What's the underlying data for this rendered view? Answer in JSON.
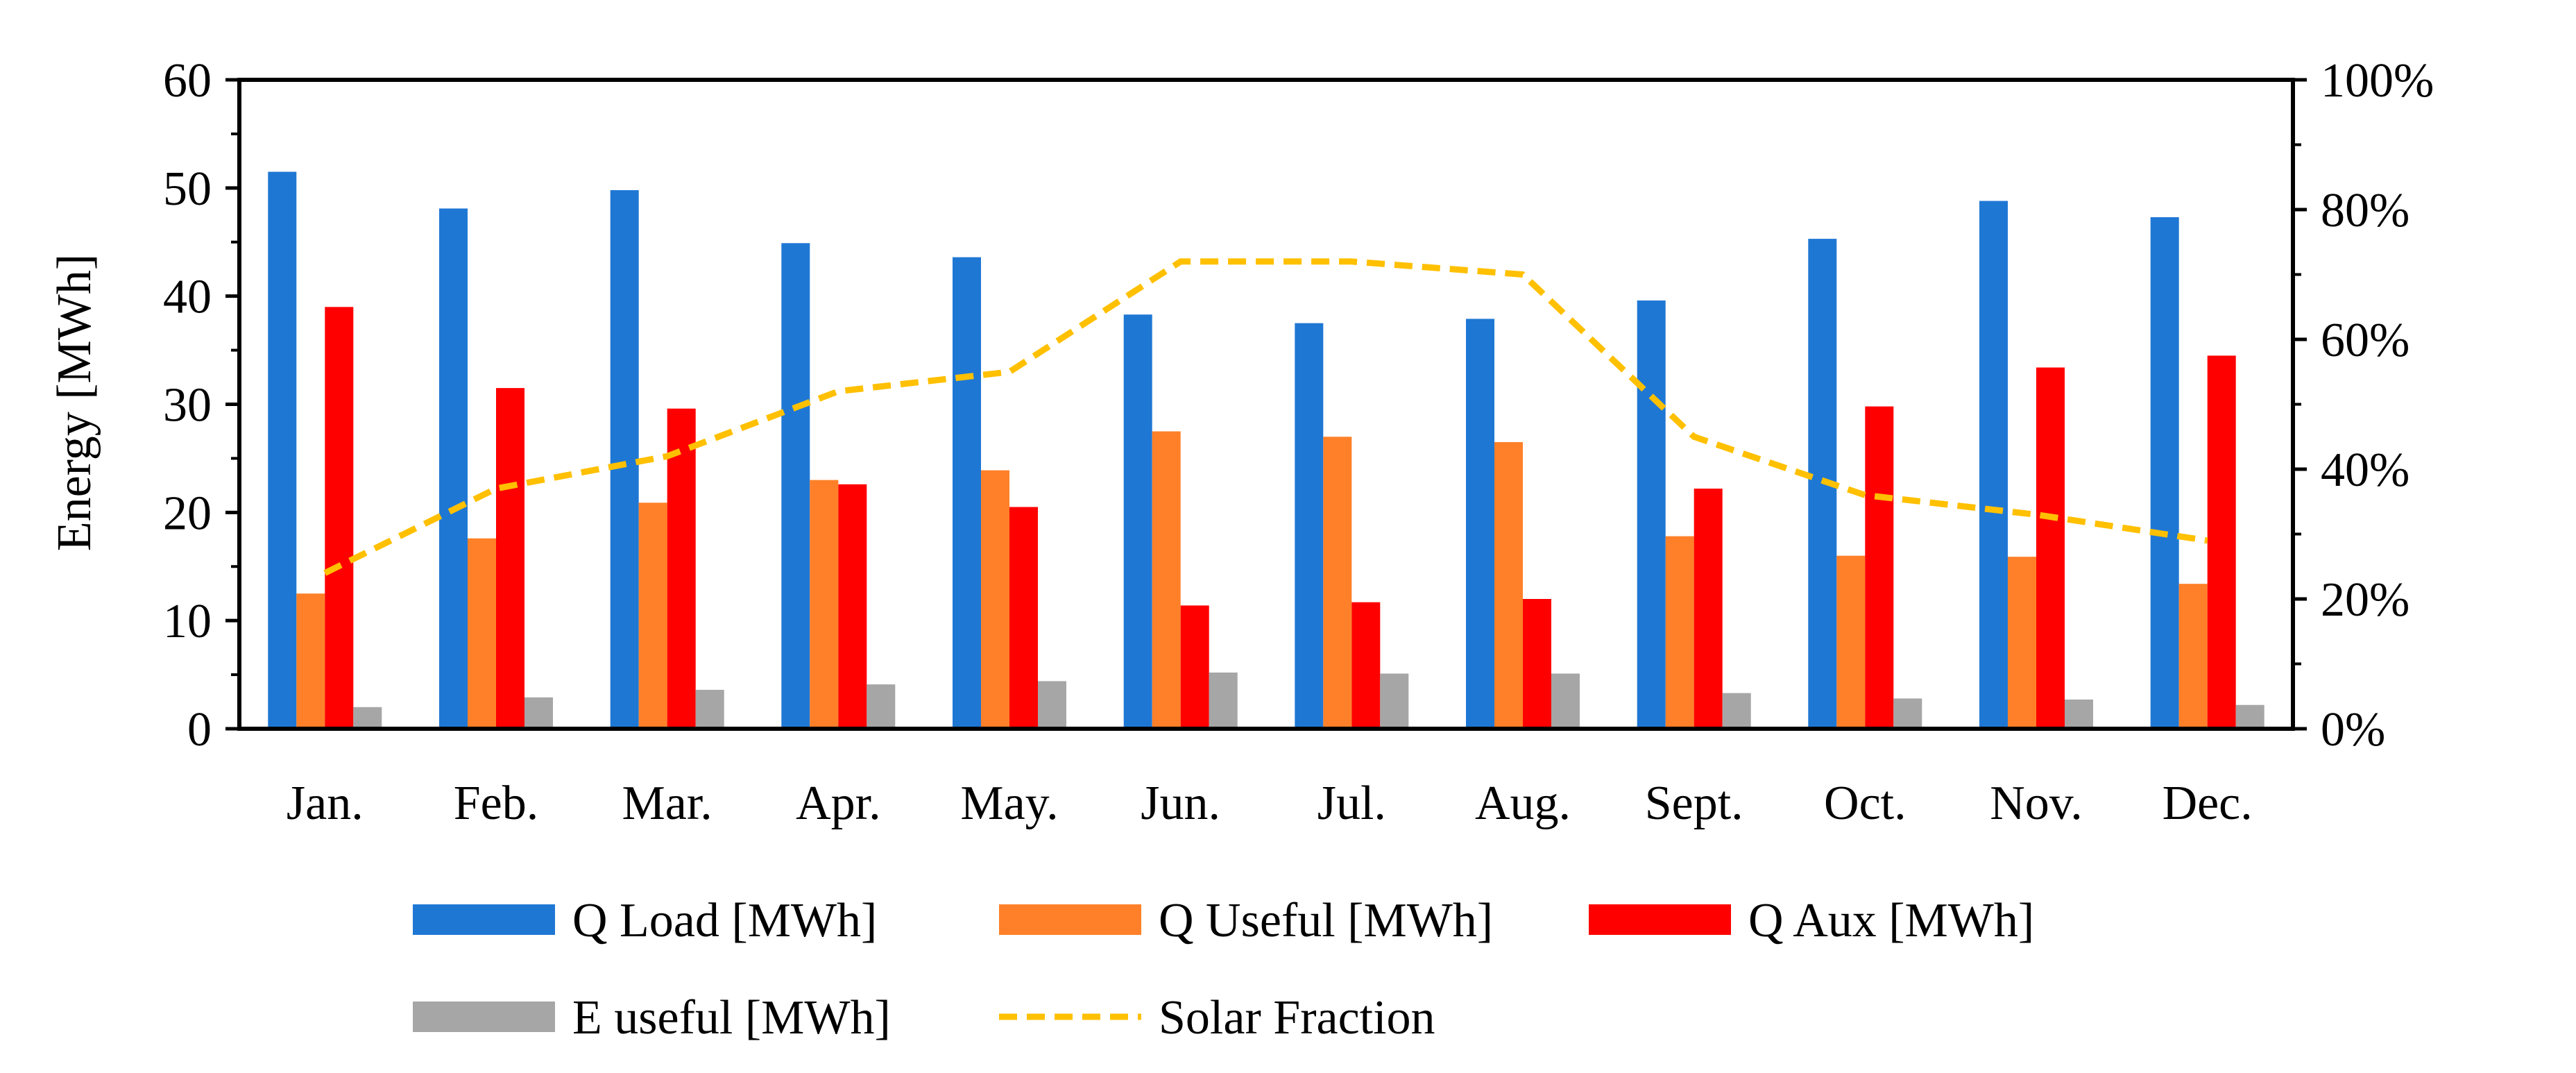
{
  "chart_data": {
    "type": "bar",
    "categories": [
      "Jan.",
      "Feb.",
      "Mar.",
      "Apr.",
      "May.",
      "Jun.",
      "Jul.",
      "Aug.",
      "Sept.",
      "Oct.",
      "Nov.",
      "Dec."
    ],
    "series": [
      {
        "name": "Q Load [MWh]",
        "type": "bar",
        "axis": "left",
        "color": "#1F77D4",
        "values": [
          51.5,
          48.1,
          49.8,
          44.9,
          43.6,
          38.3,
          37.5,
          37.9,
          39.6,
          45.3,
          48.8,
          47.3
        ]
      },
      {
        "name": "Q Useful [MWh]",
        "type": "bar",
        "axis": "left",
        "color": "#FF8028",
        "values": [
          12.5,
          17.6,
          20.9,
          23.0,
          23.9,
          27.5,
          27.0,
          26.5,
          17.8,
          16.0,
          15.9,
          13.4
        ]
      },
      {
        "name": "Q Aux [MWh]",
        "type": "bar",
        "axis": "left",
        "color": "#FF0000",
        "values": [
          39.0,
          31.5,
          29.6,
          22.6,
          20.5,
          11.4,
          11.7,
          12.0,
          22.2,
          29.8,
          33.4,
          34.5
        ]
      },
      {
        "name": "E useful [MWh]",
        "type": "bar",
        "axis": "left",
        "color": "#A6A6A6",
        "values": [
          2.0,
          2.9,
          3.6,
          4.1,
          4.4,
          5.2,
          5.1,
          5.1,
          3.3,
          2.8,
          2.7,
          2.2
        ]
      },
      {
        "name": "Solar Fraction",
        "type": "line",
        "style": "dashed",
        "axis": "right",
        "color": "#FFC000",
        "values": [
          24,
          37,
          42,
          52,
          55,
          72,
          72,
          70,
          45,
          36,
          33,
          29
        ]
      }
    ],
    "title": "",
    "xlabel": "",
    "ylabel": "Energy [MWh]",
    "ylim": [
      0,
      60
    ],
    "yticks": [
      "0",
      "10",
      "20",
      "30",
      "40",
      "50",
      "60"
    ],
    "y2lim": [
      0,
      100
    ],
    "y2ticks": [
      "0%",
      "20%",
      "40%",
      "60%",
      "80%",
      "100%"
    ],
    "legend_position": "bottom"
  }
}
